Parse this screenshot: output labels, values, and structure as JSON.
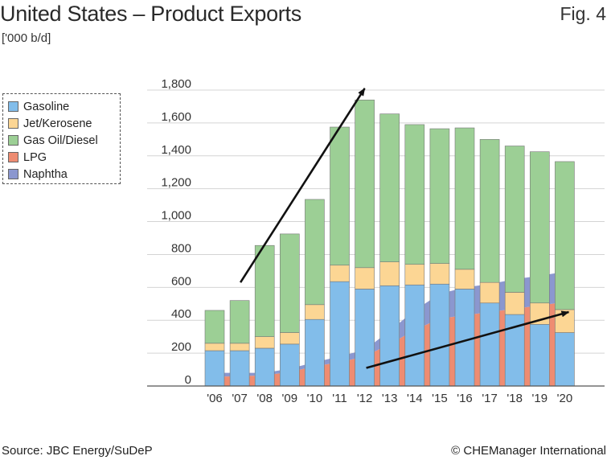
{
  "header": {
    "title": "United States – Product Exports",
    "unit": "['000 b/d]",
    "fig_label": "Fig. 4"
  },
  "footer": {
    "source": "Source: JBC Energy/SuDeP",
    "credit": "© CHEManager International"
  },
  "legend": [
    {
      "label": "Gasoline",
      "color": "#82bdea"
    },
    {
      "label": "Jet/Kerosene",
      "color": "#fcd694"
    },
    {
      "label": "Gas Oil/Diesel",
      "color": "#9ccf95"
    },
    {
      "label": "LPG",
      "color": "#ee8c72"
    },
    {
      "label": "Naphtha",
      "color": "#8b97cf"
    }
  ],
  "chart_data": {
    "type": "bar",
    "title": "United States – Product Exports",
    "ylabel": "['000 b/d]",
    "ylim": [
      0,
      1800
    ],
    "yticks": [
      0,
      200,
      400,
      600,
      800,
      1000,
      1200,
      1400,
      1600,
      1800
    ],
    "ytick_labels": [
      "0",
      "200",
      "400",
      "600",
      "800",
      "1,000",
      "1,200",
      "1,400",
      "1,600",
      "1,800"
    ],
    "categories": [
      "'06",
      "'07",
      "'08",
      "'09",
      "'10",
      "'11",
      "'12",
      "'13",
      "'14",
      "'15",
      "'16",
      "'17",
      "'18",
      "'19",
      "'20"
    ],
    "stacked_bars": [
      {
        "name": "Gasoline",
        "color": "#82bdea",
        "values": [
          215,
          215,
          230,
          255,
          405,
          635,
          590,
          610,
          615,
          620,
          590,
          505,
          435,
          375,
          325
        ]
      },
      {
        "name": "Jet/Kerosene",
        "color": "#fcd694",
        "values": [
          45,
          45,
          70,
          70,
          90,
          100,
          130,
          145,
          125,
          125,
          120,
          125,
          135,
          130,
          140
        ]
      },
      {
        "name": "Gas Oil/Diesel",
        "color": "#9ccf95",
        "values": [
          200,
          260,
          555,
          600,
          640,
          840,
          1020,
          900,
          850,
          820,
          860,
          870,
          890,
          920,
          900
        ]
      }
    ],
    "stacked_areas": [
      {
        "name": "LPG",
        "color": "#ee8c72",
        "values": [
          55,
          60,
          65,
          85,
          120,
          145,
          180,
          255,
          340,
          410,
          430,
          450,
          470,
          490,
          520
        ]
      },
      {
        "name": "Naphtha",
        "color": "#8b97cf",
        "values": [
          25,
          20,
          15,
          20,
          25,
          35,
          40,
          80,
          120,
          150,
          170,
          170,
          180,
          180,
          185
        ]
      }
    ],
    "annotations": [
      {
        "type": "arrow",
        "from": [
          "'07",
          630
        ],
        "to": [
          "'12",
          1810
        ]
      },
      {
        "type": "arrow",
        "from": [
          "'12",
          110
        ],
        "to": [
          "'20",
          450
        ]
      }
    ]
  }
}
